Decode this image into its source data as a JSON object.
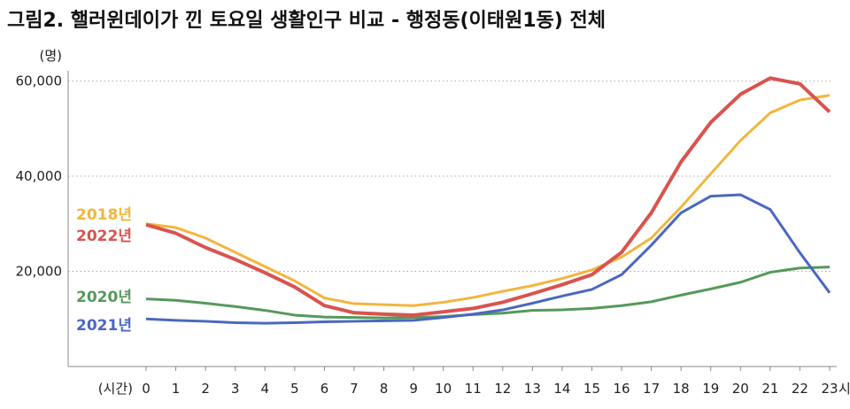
{
  "chart_data": {
    "type": "line",
    "title": "그림2. 핼러윈데이가 낀 토요일 생활인구 비교 - 행정동(이태원1동) 전체",
    "ylabel": "(명)",
    "xlabel": "(시간)",
    "x_suffix": "시",
    "x": [
      0,
      1,
      2,
      3,
      4,
      5,
      6,
      7,
      8,
      9,
      10,
      11,
      12,
      13,
      14,
      15,
      16,
      17,
      18,
      19,
      20,
      21,
      22,
      23
    ],
    "ylim": [
      0,
      65000
    ],
    "yticks": [
      20000,
      40000,
      60000
    ],
    "ytick_labels": [
      "20,000",
      "40,000",
      "60,000"
    ],
    "grid": true,
    "series": [
      {
        "name": "2018년",
        "color": "#f2b63c",
        "values": [
          30000,
          29200,
          27000,
          24000,
          21000,
          18000,
          14400,
          13200,
          13000,
          12800,
          13500,
          14500,
          15800,
          17000,
          18500,
          20300,
          23000,
          27000,
          33500,
          40500,
          47500,
          53300,
          56000,
          57000
        ]
      },
      {
        "name": "2022년",
        "color": "#d9534f",
        "values": [
          29800,
          28000,
          25000,
          22500,
          19700,
          16700,
          12800,
          11300,
          11000,
          10800,
          11500,
          12200,
          13500,
          15300,
          17200,
          19300,
          24000,
          32300,
          43000,
          51300,
          57200,
          60600,
          59400,
          53500
        ]
      },
      {
        "name": "2020년",
        "color": "#55995a",
        "values": [
          14200,
          13900,
          13300,
          12600,
          11800,
          10800,
          10400,
          10300,
          10200,
          10300,
          10500,
          10900,
          11200,
          11800,
          11900,
          12200,
          12800,
          13600,
          15000,
          16300,
          17700,
          19800,
          20700,
          20900
        ]
      },
      {
        "name": "2021년",
        "color": "#4a68c0",
        "values": [
          10000,
          9700,
          9500,
          9200,
          9100,
          9200,
          9400,
          9500,
          9600,
          9700,
          10300,
          11000,
          11900,
          13300,
          14800,
          16200,
          19300,
          25500,
          32300,
          35800,
          36100,
          33000,
          23900,
          15500
        ]
      }
    ]
  }
}
